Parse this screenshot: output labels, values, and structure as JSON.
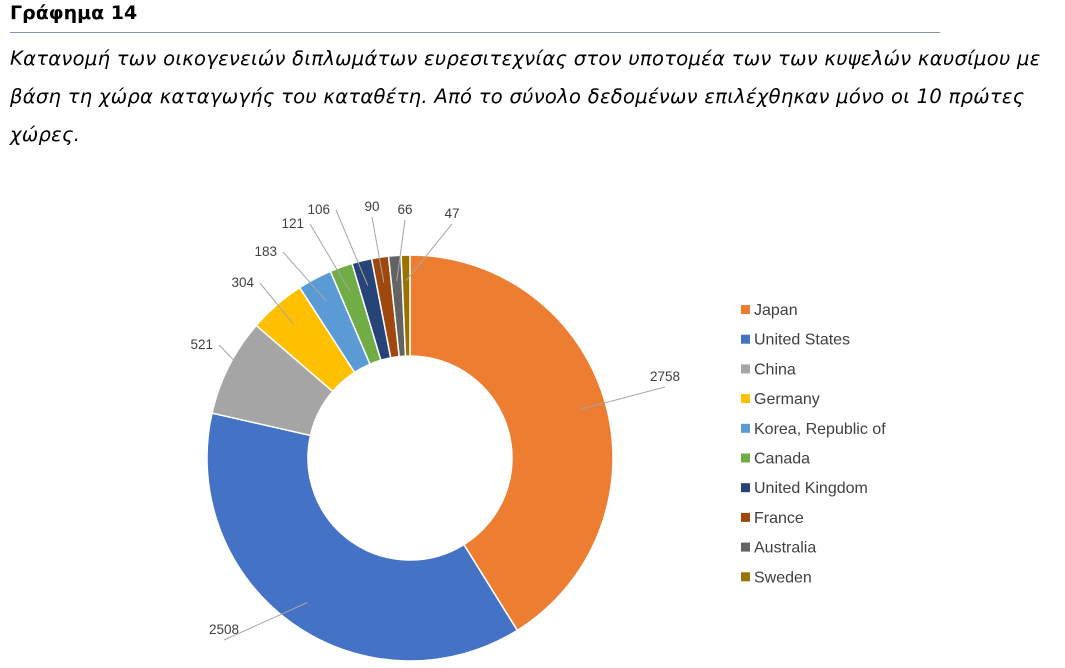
{
  "figure": {
    "label": "Γράφημα 14",
    "caption": "Κατανομή των οικογενειών διπλωμάτων ευρεσιτεχνίας στον υποτομέα των των κυψελών καυσίμου με βάση τη χώρα καταγωγής του καταθέτη. Από το σύνολο δεδομένων επιλέχθηκαν μόνο οι 10 πρώτες χώρες."
  },
  "chart_data": {
    "type": "pie",
    "variant": "donut",
    "legend_position": "right",
    "categories": [
      "Japan",
      "United States",
      "China",
      "Germany",
      "Korea, Republic of",
      "Canada",
      "United Kingdom",
      "France",
      "Australia",
      "Sweden"
    ],
    "values": [
      2758,
      2508,
      521,
      304,
      183,
      121,
      106,
      90,
      66,
      47
    ],
    "colors": [
      "#ed7d31",
      "#4472c4",
      "#a5a5a5",
      "#ffc000",
      "#5b9bd5",
      "#70ad47",
      "#264478",
      "#9e480e",
      "#636363",
      "#997300"
    ]
  }
}
